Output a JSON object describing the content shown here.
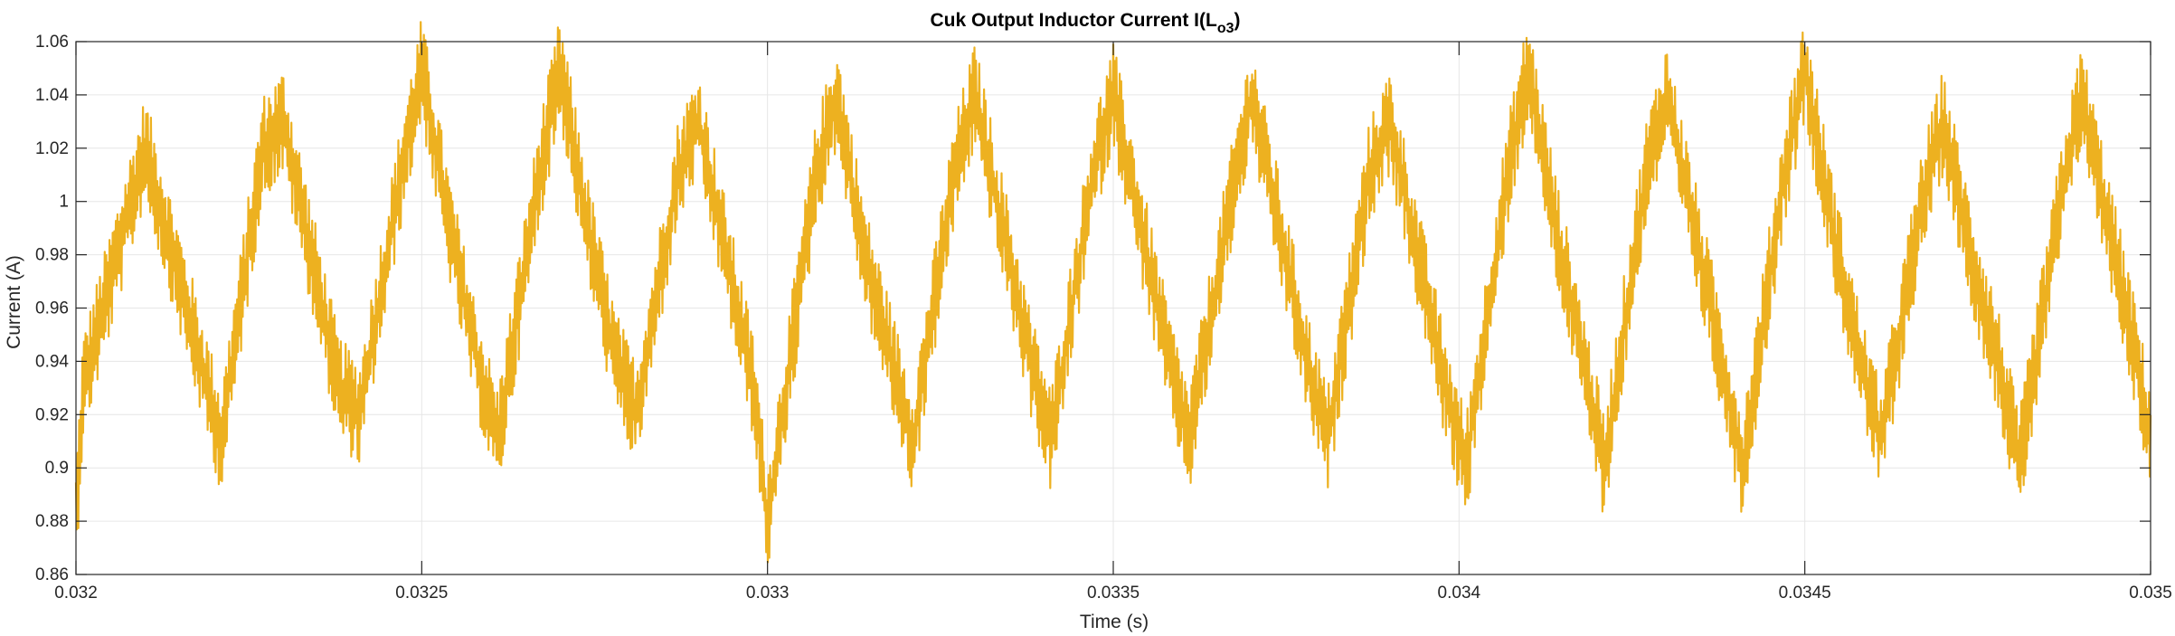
{
  "chart_data": {
    "type": "line",
    "title": {
      "main": "Cuk Output Inductor Current I(L",
      "subscript": "o3",
      "close": ")"
    },
    "xlabel": "Time (s)",
    "ylabel": "Current (A)",
    "xlim": [
      0.032,
      0.035
    ],
    "ylim": [
      0.86,
      1.06
    ],
    "x_ticks": [
      0.032,
      0.0325,
      0.033,
      0.0335,
      0.034,
      0.0345,
      0.035
    ],
    "x_tick_labels": [
      "0.032",
      "0.0325",
      "0.033",
      "0.0335",
      "0.034",
      "0.0345",
      "0.035"
    ],
    "y_ticks": [
      0.86,
      0.88,
      0.9,
      0.92,
      0.94,
      0.96,
      0.98,
      1.0,
      1.02,
      1.04,
      1.06
    ],
    "y_tick_labels": [
      "0.86",
      "0.88",
      "0.9",
      "0.92",
      "0.94",
      "0.96",
      "0.98",
      "1",
      "1.02",
      "1.04",
      "1.06"
    ],
    "grid": true,
    "legend": "none",
    "series": [
      {
        "color": "#EDB120",
        "values": [
          [
            0.032,
            0.88
          ],
          [
            0.03201,
            0.93
          ],
          [
            0.03204,
            0.96
          ],
          [
            0.03207,
            0.99
          ],
          [
            0.0321,
            1.02
          ],
          [
            0.03214,
            0.98
          ],
          [
            0.03218,
            0.94
          ],
          [
            0.03221,
            0.91
          ],
          [
            0.03227,
            1.02
          ],
          [
            0.0323,
            1.03
          ],
          [
            0.03234,
            0.98
          ],
          [
            0.03238,
            0.93
          ],
          [
            0.03241,
            0.92
          ],
          [
            0.03247,
            1.01
          ],
          [
            0.0325,
            1.05
          ],
          [
            0.03254,
            0.99
          ],
          [
            0.03258,
            0.94
          ],
          [
            0.03261,
            0.91
          ],
          [
            0.03267,
            1.01
          ],
          [
            0.0327,
            1.05
          ],
          [
            0.03274,
            0.99
          ],
          [
            0.03278,
            0.94
          ],
          [
            0.03281,
            0.92
          ],
          [
            0.03287,
            1.01
          ],
          [
            0.0329,
            1.03
          ],
          [
            0.03294,
            0.98
          ],
          [
            0.03298,
            0.93
          ],
          [
            0.033,
            0.88
          ],
          [
            0.03307,
            1.01
          ],
          [
            0.0331,
            1.04
          ],
          [
            0.03314,
            0.98
          ],
          [
            0.03318,
            0.94
          ],
          [
            0.03321,
            0.91
          ],
          [
            0.03327,
            1.01
          ],
          [
            0.0333,
            1.04
          ],
          [
            0.03334,
            0.99
          ],
          [
            0.03338,
            0.94
          ],
          [
            0.03341,
            0.91
          ],
          [
            0.03347,
            1.01
          ],
          [
            0.0335,
            1.04
          ],
          [
            0.03354,
            0.99
          ],
          [
            0.03358,
            0.94
          ],
          [
            0.03361,
            0.91
          ],
          [
            0.03367,
            1.0
          ],
          [
            0.0337,
            1.04
          ],
          [
            0.03374,
            0.99
          ],
          [
            0.03378,
            0.94
          ],
          [
            0.03381,
            0.91
          ],
          [
            0.03387,
            1.01
          ],
          [
            0.0339,
            1.03
          ],
          [
            0.03394,
            0.98
          ],
          [
            0.03398,
            0.93
          ],
          [
            0.03401,
            0.9
          ],
          [
            0.03407,
            1.01
          ],
          [
            0.0341,
            1.05
          ],
          [
            0.03414,
            0.99
          ],
          [
            0.03418,
            0.94
          ],
          [
            0.03421,
            0.9
          ],
          [
            0.03427,
            1.01
          ],
          [
            0.0343,
            1.04
          ],
          [
            0.03434,
            0.99
          ],
          [
            0.03438,
            0.94
          ],
          [
            0.03441,
            0.9
          ],
          [
            0.03447,
            1.01
          ],
          [
            0.0345,
            1.05
          ],
          [
            0.03454,
            0.99
          ],
          [
            0.03458,
            0.94
          ],
          [
            0.03461,
            0.91
          ],
          [
            0.03467,
            1.0
          ],
          [
            0.0347,
            1.03
          ],
          [
            0.03474,
            0.98
          ],
          [
            0.03478,
            0.94
          ],
          [
            0.03481,
            0.9
          ],
          [
            0.03487,
            1.0
          ],
          [
            0.0349,
            1.04
          ],
          [
            0.03494,
            0.99
          ],
          [
            0.03498,
            0.94
          ],
          [
            0.035,
            0.91
          ]
        ]
      }
    ]
  }
}
